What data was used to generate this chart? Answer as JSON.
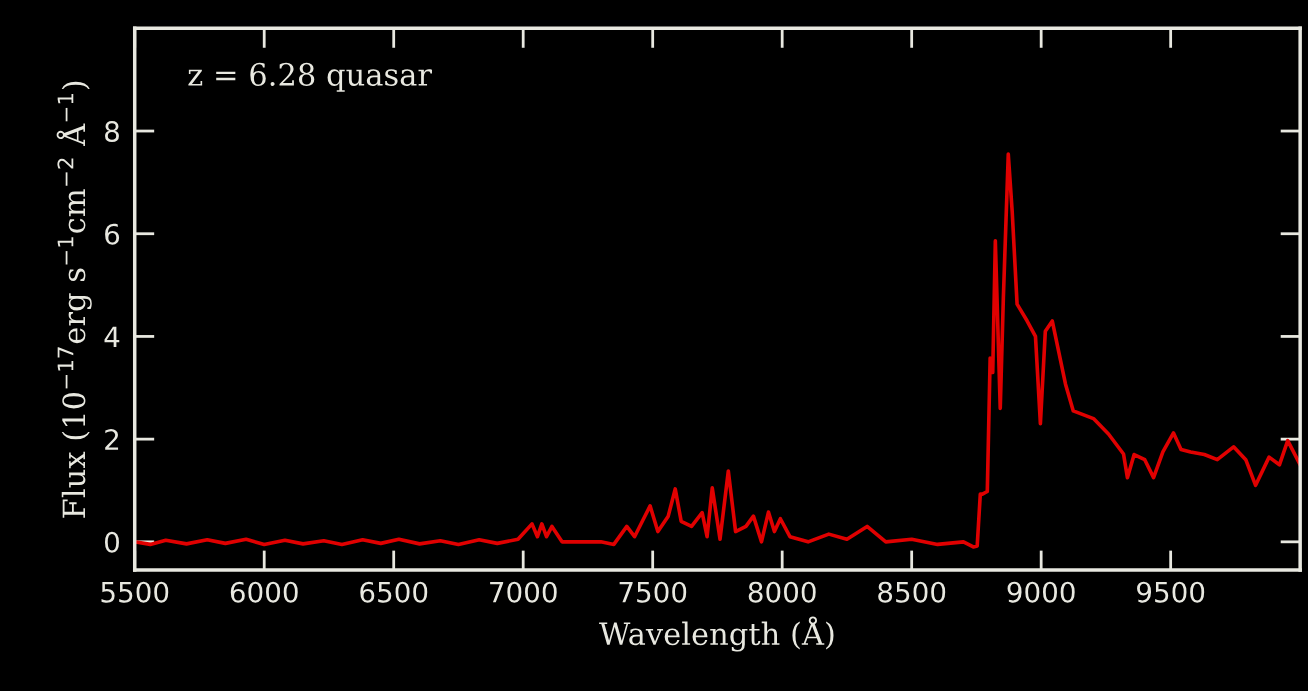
{
  "chart_data": {
    "type": "line",
    "xlabel": "Wavelength (Å)",
    "ylabel": "Flux (10$^{−17}$erg s$^{−1}$cm$^{−2}$ Å$^{−1}$)",
    "annotations": [
      "z = 6.28 quasar"
    ],
    "xlim": [
      5500,
      10000
    ],
    "ylim": [
      -0.55,
      10
    ],
    "xticks": [
      5500,
      6000,
      6500,
      7000,
      7500,
      8000,
      8500,
      9000,
      9500
    ],
    "yticks": [
      0,
      2,
      4,
      6,
      8
    ],
    "marker": "none",
    "line_style": "solid",
    "series": [
      {
        "color": "#e00000",
        "x": [
          5500,
          5560,
          5620,
          5700,
          5780,
          5850,
          5930,
          6000,
          6080,
          6150,
          6230,
          6300,
          6380,
          6450,
          6520,
          6600,
          6680,
          6750,
          6830,
          6900,
          6980,
          7034,
          7055,
          7072,
          7090,
          7111,
          7150,
          7300,
          7350,
          7400,
          7430,
          7460,
          7490,
          7520,
          7560,
          7587,
          7610,
          7650,
          7691,
          7710,
          7730,
          7760,
          7792,
          7820,
          7860,
          7889,
          7920,
          7947,
          7970,
          7993,
          8030,
          8100,
          8180,
          8250,
          8328,
          8400,
          8500,
          8600,
          8700,
          8738,
          8753,
          8765,
          8773,
          8792,
          8803,
          8813,
          8823,
          8842,
          8854,
          8873,
          8888,
          8907,
          8946,
          8978,
          8997,
          9016,
          9043,
          9094,
          9124,
          9202,
          9260,
          9318,
          9333,
          9359,
          9400,
          9434,
          9470,
          9511,
          9540,
          9577,
          9630,
          9680,
          9743,
          9790,
          9828,
          9880,
          9920,
          9952,
          10000
        ],
        "values": [
          0.0,
          -0.05,
          0.03,
          -0.04,
          0.04,
          -0.03,
          0.05,
          -0.05,
          0.03,
          -0.04,
          0.02,
          -0.05,
          0.04,
          -0.03,
          0.05,
          -0.04,
          0.02,
          -0.05,
          0.04,
          -0.03,
          0.05,
          0.35,
          0.1,
          0.35,
          0.1,
          0.3,
          0.0,
          0.0,
          -0.05,
          0.3,
          0.1,
          0.4,
          0.7,
          0.2,
          0.5,
          1.03,
          0.4,
          0.3,
          0.57,
          0.1,
          1.05,
          0.05,
          1.38,
          0.2,
          0.3,
          0.5,
          0.0,
          0.58,
          0.2,
          0.45,
          0.1,
          0.0,
          0.15,
          0.05,
          0.3,
          0.0,
          0.05,
          -0.05,
          0.0,
          -0.1,
          -0.08,
          0.93,
          0.93,
          0.98,
          3.58,
          3.3,
          5.86,
          2.6,
          4.75,
          7.55,
          6.44,
          4.63,
          4.3,
          4.0,
          2.3,
          4.1,
          4.3,
          3.07,
          2.55,
          2.4,
          2.1,
          1.71,
          1.25,
          1.7,
          1.6,
          1.25,
          1.75,
          2.12,
          1.8,
          1.75,
          1.7,
          1.6,
          1.85,
          1.6,
          1.1,
          1.65,
          1.5,
          1.97,
          1.5
        ]
      }
    ]
  }
}
